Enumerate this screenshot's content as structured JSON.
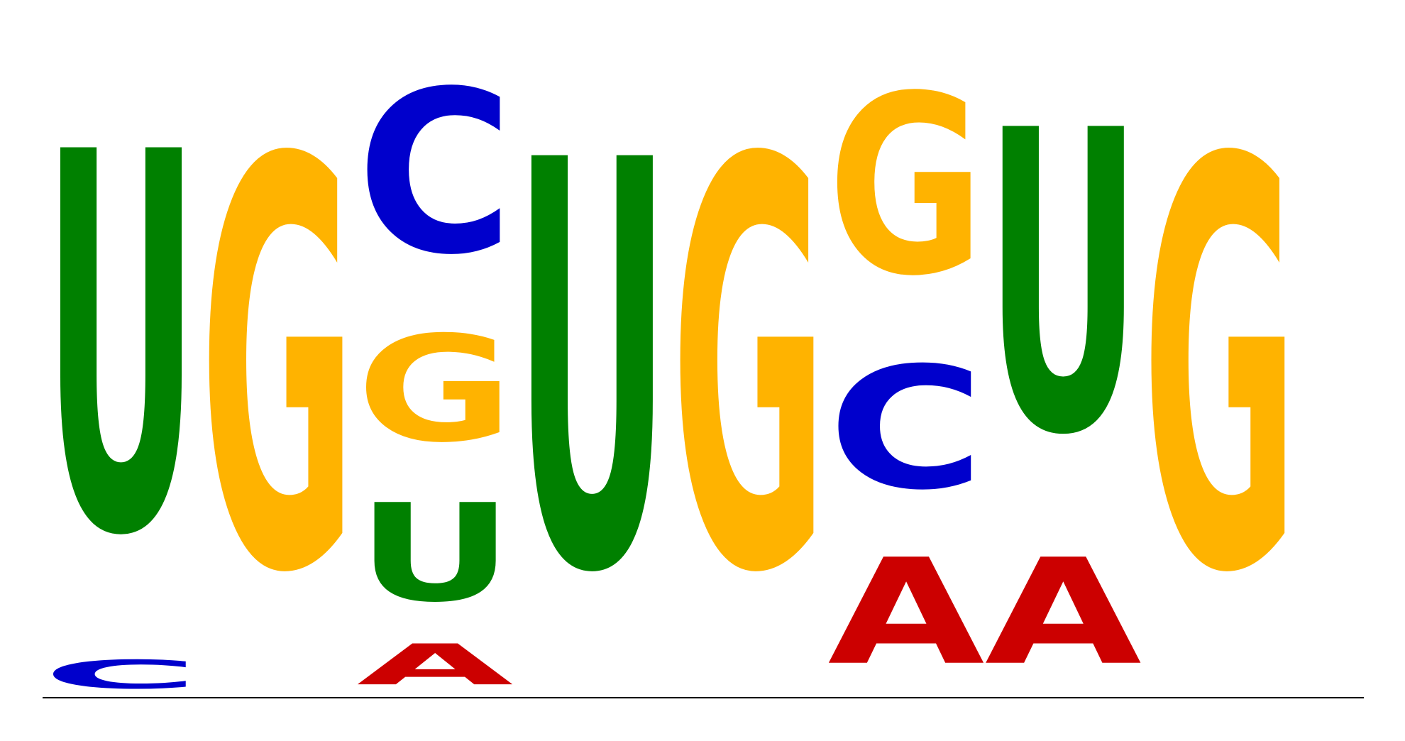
{
  "colors": {
    "A": "#CC0000",
    "C": "#0000CC",
    "G": "#FFB300",
    "U": "#008000"
  },
  "positions": [
    {
      "letters": [
        {
          "base": "C",
          "height": 0.07
        },
        {
          "base": "U",
          "height": 0.93
        }
      ]
    },
    {
      "letters": [
        {
          "base": "G",
          "height": 1.0
        }
      ]
    },
    {
      "letters": [
        {
          "base": "A",
          "height": 0.1
        },
        {
          "base": "U",
          "height": 0.24
        },
        {
          "base": "G",
          "height": 0.26
        },
        {
          "base": "C",
          "height": 0.4
        }
      ]
    },
    {
      "letters": [
        {
          "base": "U",
          "height": 1.0
        }
      ]
    },
    {
      "letters": [
        {
          "base": "G",
          "height": 1.0
        }
      ]
    },
    {
      "letters": [
        {
          "base": "A",
          "height": 0.26
        },
        {
          "base": "C",
          "height": 0.3
        },
        {
          "base": "G",
          "height": 0.44
        }
      ]
    },
    {
      "letters": [
        {
          "base": "A",
          "height": 0.26
        },
        {
          "base": "U",
          "height": 0.74
        }
      ]
    },
    {
      "letters": [
        {
          "base": "G",
          "height": 1.0
        }
      ]
    }
  ]
}
